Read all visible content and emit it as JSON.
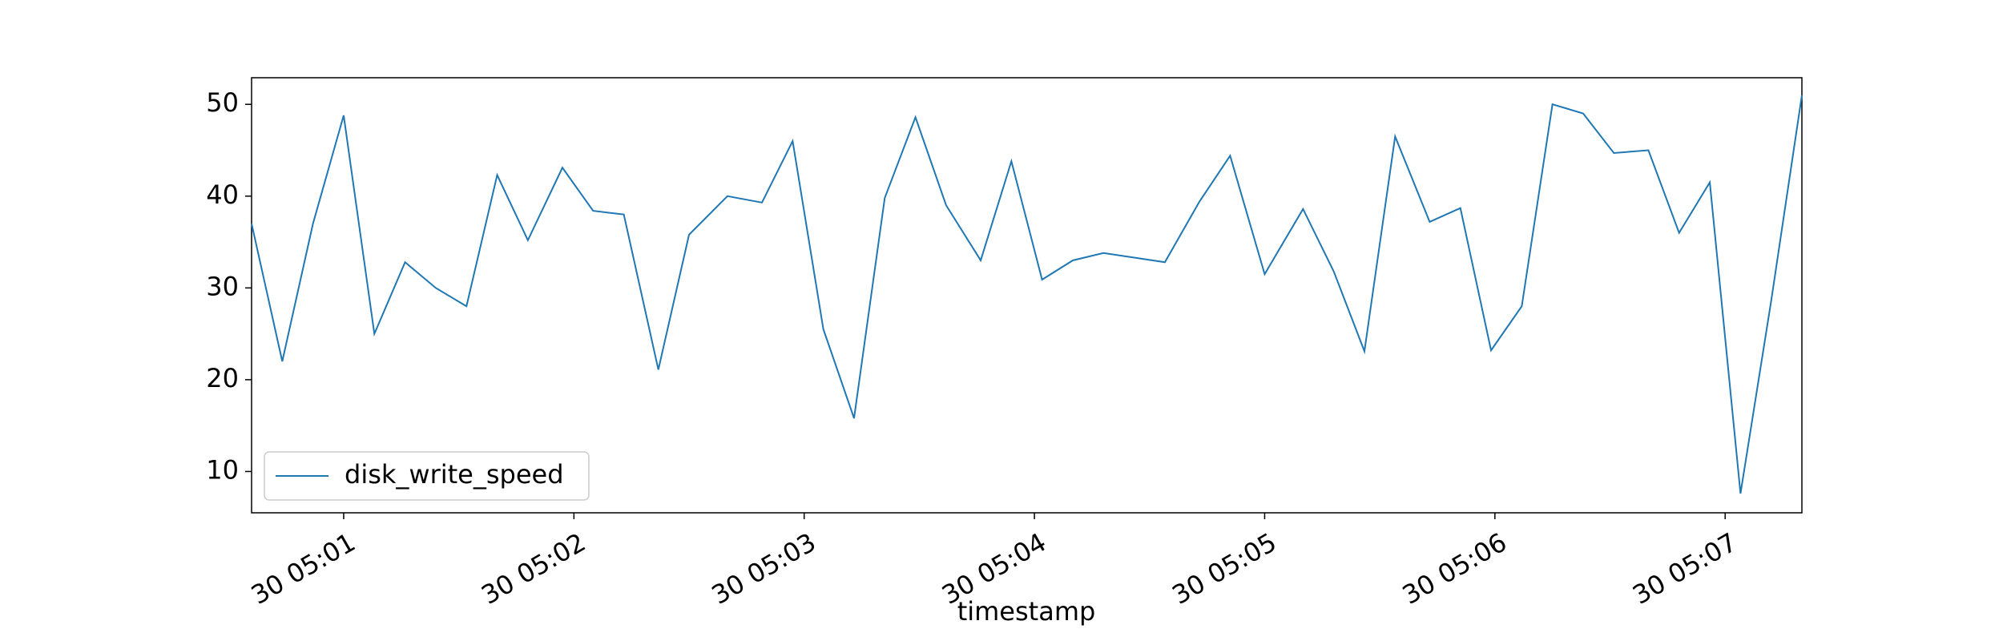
{
  "chart_data": {
    "type": "line",
    "xlabel": "timestamp",
    "x": [
      "30 05:00:36",
      "30 05:00:44",
      "30 05:00:52",
      "30 05:01:00",
      "30 05:01:08",
      "30 05:01:16",
      "30 05:01:24",
      "30 05:01:32",
      "30 05:01:40",
      "30 05:01:48",
      "30 05:01:57",
      "30 05:02:05",
      "30 05:02:13",
      "30 05:02:22",
      "30 05:02:30",
      "30 05:02:40",
      "30 05:02:49",
      "30 05:02:57",
      "30 05:03:05",
      "30 05:03:13",
      "30 05:03:21",
      "30 05:03:29",
      "30 05:03:37",
      "30 05:03:46",
      "30 05:03:54",
      "30 05:04:02",
      "30 05:04:10",
      "30 05:04:18",
      "30 05:04:26",
      "30 05:04:34",
      "30 05:04:43",
      "30 05:04:51",
      "30 05:05:00",
      "30 05:05:10",
      "30 05:05:18",
      "30 05:05:26",
      "30 05:05:34",
      "30 05:05:43",
      "30 05:05:51",
      "30 05:05:59",
      "30 05:06:07",
      "30 05:06:15",
      "30 05:06:23",
      "30 05:06:31",
      "30 05:06:40",
      "30 05:06:48",
      "30 05:06:56",
      "30 05:07:04",
      "30 05:07:12",
      "30 05:07:20"
    ],
    "series": [
      {
        "name": "disk_write_speed",
        "color": "#1f77b4",
        "values": [
          37,
          22,
          37,
          48.8,
          25,
          32.8,
          30,
          28,
          42.3,
          35.2,
          43.1,
          38.4,
          38,
          21.1,
          35.8,
          40,
          39.3,
          46,
          25.5,
          15.8,
          39.8,
          48.6,
          39,
          33,
          43.8,
          30.9,
          33,
          33.8,
          33.3,
          32.8,
          39.4,
          44.4,
          31.5,
          38.6,
          31.8,
          23.1,
          46.5,
          37.2,
          38.7,
          23.2,
          28,
          50,
          49,
          44.7,
          45,
          36,
          41.5,
          7.6,
          28.6,
          51
        ]
      }
    ],
    "xlim": [
      "30 05:00:36",
      "30 05:07:20"
    ],
    "xticks": [
      {
        "value": "30 05:01:00",
        "label": "30 05:01"
      },
      {
        "value": "30 05:02:00",
        "label": "30 05:02"
      },
      {
        "value": "30 05:03:00",
        "label": "30 05:03"
      },
      {
        "value": "30 05:04:00",
        "label": "30 05:04"
      },
      {
        "value": "30 05:05:00",
        "label": "30 05:05"
      },
      {
        "value": "30 05:06:00",
        "label": "30 05:06"
      },
      {
        "value": "30 05:07:00",
        "label": "30 05:07"
      }
    ],
    "ylim": [
      5.5,
      52.9
    ],
    "yticks": [
      10,
      20,
      30,
      40,
      50
    ],
    "legend": "lower left",
    "grid": false
  }
}
